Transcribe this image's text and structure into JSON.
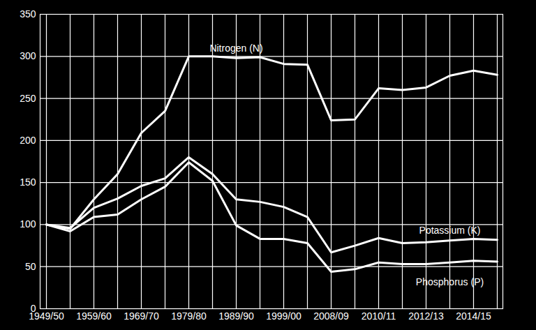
{
  "chart_data": {
    "type": "line",
    "categories": [
      "1949/50",
      null,
      "1959/60",
      null,
      "1969/70",
      null,
      "1979/80",
      null,
      "1989/90",
      null,
      "1999/00",
      null,
      "2008/09",
      null,
      "2010/11",
      null,
      "2012/13",
      null,
      "2014/15",
      null
    ],
    "series": [
      {
        "name": "Nitrogen (N)",
        "color": "#ffffff",
        "values": [
          100,
          95,
          130,
          160,
          209,
          235,
          300,
          300,
          298,
          299,
          291,
          290,
          224,
          225,
          262,
          260,
          263,
          277,
          283,
          278
        ]
      },
      {
        "name": "Potassium (K)",
        "color": "#ffffff",
        "values": [
          100,
          96,
          120,
          131,
          146,
          155,
          180,
          160,
          130,
          127,
          121,
          109,
          67,
          75,
          84,
          78,
          79,
          81,
          83,
          82
        ]
      },
      {
        "name": "Phosphorus (P)",
        "color": "#ffffff",
        "values": [
          100,
          92,
          109,
          112,
          130,
          145,
          174,
          152,
          99,
          83,
          83,
          78,
          44,
          47,
          55,
          53,
          53,
          55,
          57,
          56
        ]
      }
    ],
    "ylim": [
      0,
      350
    ],
    "yticks": [
      0,
      50,
      100,
      150,
      200,
      250,
      300,
      350
    ],
    "grid": true
  }
}
